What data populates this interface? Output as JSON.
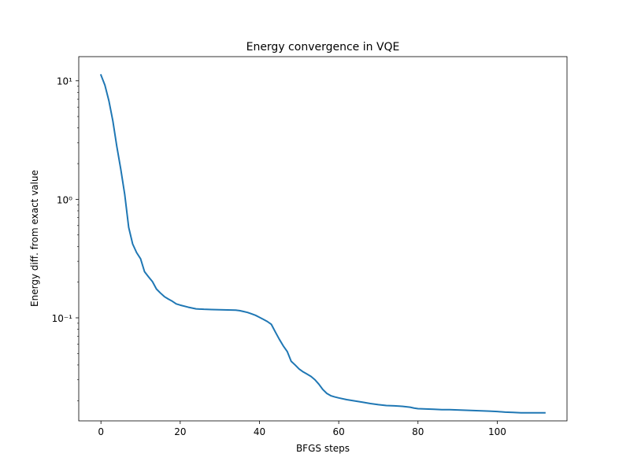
{
  "chart_data": {
    "type": "line",
    "title": "Energy convergence in VQE",
    "xlabel": "BFGS steps",
    "ylabel": "Energy diff. from exact value",
    "xlim": [
      -5.6,
      117.6
    ],
    "ylim": [
      0.0135,
      16
    ],
    "yscale": "log",
    "grid": false,
    "line_color": "#1f77b4",
    "x_ticks": [
      0,
      20,
      40,
      60,
      80,
      100
    ],
    "y_ticks": [
      {
        "value": 0.1,
        "label": "10⁻¹"
      },
      {
        "value": 1,
        "label": "10⁰"
      },
      {
        "value": 10,
        "label": "10¹"
      }
    ],
    "series": [
      {
        "x": [
          0,
          1,
          2,
          3,
          4,
          5,
          6,
          7,
          8,
          9,
          10,
          11,
          12,
          13,
          14,
          15,
          16,
          17,
          18,
          19,
          20,
          22,
          24,
          26,
          28,
          30,
          32,
          34,
          35,
          36,
          37,
          38,
          39,
          40,
          41,
          42,
          43,
          44,
          45,
          46,
          47,
          48,
          49,
          50,
          51,
          52,
          53,
          54,
          55,
          56,
          57,
          58,
          59,
          60,
          62,
          64,
          66,
          68,
          70,
          72,
          74,
          76,
          78,
          79,
          80,
          82,
          84,
          86,
          88,
          90,
          92,
          94,
          96,
          98,
          100,
          102,
          104,
          106,
          108,
          110,
          112
        ],
        "y": [
          11.2,
          9.2,
          6.8,
          4.6,
          2.8,
          1.8,
          1.1,
          0.58,
          0.42,
          0.355,
          0.315,
          0.245,
          0.222,
          0.202,
          0.175,
          0.162,
          0.151,
          0.144,
          0.138,
          0.131,
          0.128,
          0.123,
          0.119,
          0.118,
          0.1175,
          0.117,
          0.1165,
          0.116,
          0.115,
          0.113,
          0.111,
          0.108,
          0.105,
          0.101,
          0.097,
          0.093,
          0.088,
          0.076,
          0.066,
          0.058,
          0.052,
          0.043,
          0.04,
          0.037,
          0.035,
          0.0335,
          0.032,
          0.03,
          0.0275,
          0.0248,
          0.023,
          0.022,
          0.0215,
          0.0211,
          0.0204,
          0.0199,
          0.0194,
          0.0189,
          0.0185,
          0.0182,
          0.0181,
          0.0179,
          0.0176,
          0.0173,
          0.0171,
          0.017,
          0.0169,
          0.0168,
          0.0168,
          0.0167,
          0.0166,
          0.0165,
          0.0164,
          0.0163,
          0.0162,
          0.016,
          0.0159,
          0.0158,
          0.0158,
          0.0158,
          0.0158
        ]
      }
    ]
  }
}
